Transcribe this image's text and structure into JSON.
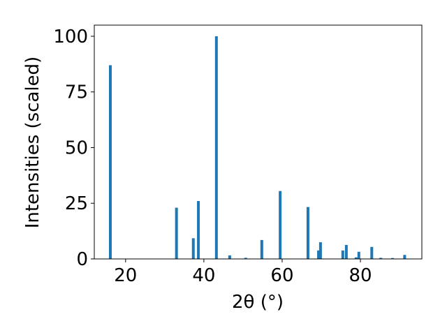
{
  "chart_data": {
    "type": "bar",
    "xlabel": "2θ (°)",
    "ylabel": "Intensities (scaled)",
    "x": [
      16.1,
      33.0,
      37.3,
      38.6,
      43.2,
      46.6,
      50.7,
      54.8,
      59.5,
      66.6,
      69.3,
      69.8,
      75.5,
      76.4,
      78.9,
      79.6,
      82.9,
      85.2,
      88.2,
      91.3
    ],
    "values": [
      87,
      23,
      9.3,
      26,
      100,
      1.6,
      0.5,
      8.5,
      30.5,
      23.3,
      3.8,
      7.5,
      3.8,
      6.3,
      0.7,
      3.2,
      5.4,
      0.5,
      0.4,
      1.8
    ],
    "color": "#1f77b4",
    "xlim": [
      12,
      95.7
    ],
    "ylim": [
      0,
      105
    ],
    "xticks": [
      20,
      40,
      60,
      80
    ],
    "yticks": [
      0,
      25,
      50,
      75,
      100
    ]
  }
}
